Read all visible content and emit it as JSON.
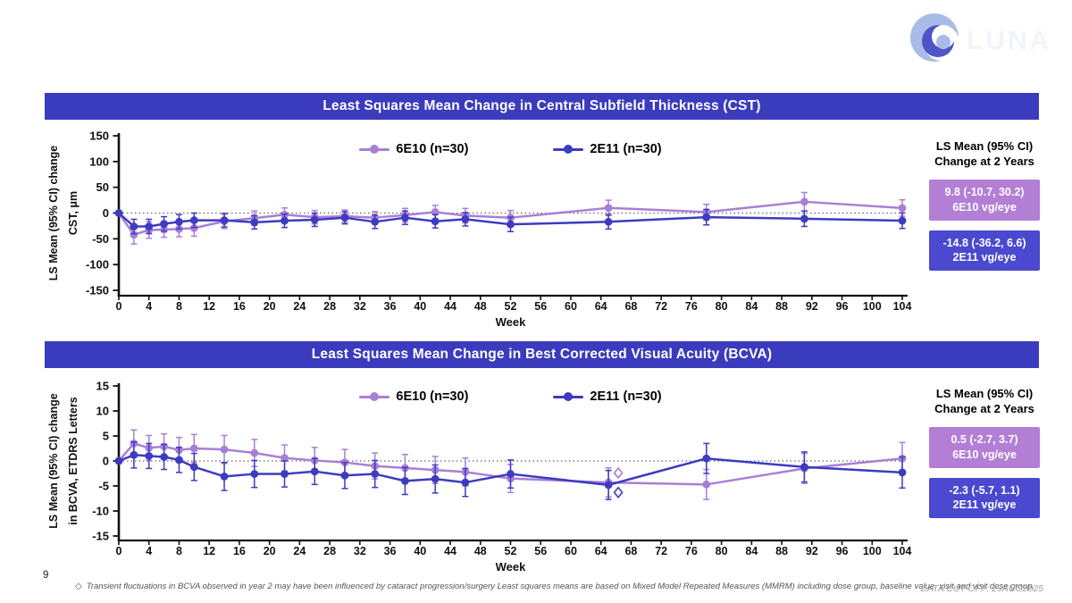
{
  "page": {
    "number": "9",
    "footnote_marker": "◇",
    "footnote": "Transient fluctuations in BCVA observed in year 2 may have been influenced by cataract progression/surgery Least squares means are based on Mixed Model Repeated Measures (MMRM) including dose group, baseline value, visit and visit dose group.",
    "data_cutoff": "DATA CUT-OFF: 29AUG2025",
    "logo_text": "LUNA"
  },
  "colors": {
    "series_6e10": "#a97fd6",
    "series_2e11": "#3d3bbf",
    "title_bar": "#3b3bbe",
    "callout_6e10": "#b27fd5",
    "callout_2e11": "#4a49cf",
    "logo_light": "#a9bce9",
    "logo_dark": "#4d55c7",
    "zero_line": "#666666",
    "axis": "#111111"
  },
  "side_panels": [
    {
      "heading_line1": "LS Mean (95% CI)",
      "heading_line2": "Change at 2 Years",
      "boxes": [
        {
          "value": "9.8 (-10.7, 30.2)",
          "label": "6E10 vg/eye"
        },
        {
          "value": "-14.8 (-36.2, 6.6)",
          "label": "2E11 vg/eye"
        }
      ]
    },
    {
      "heading_line1": "LS Mean (95% CI)",
      "heading_line2": "Change at 2 Years",
      "boxes": [
        {
          "value": "0.5 (-2.7, 3.7)",
          "label": "6E10 vg/eye"
        },
        {
          "value": "-2.3 (-5.7, 1.1)",
          "label": "2E11 vg/eye"
        }
      ]
    }
  ],
  "chart_data": [
    {
      "type": "line",
      "title": "Least Squares Mean Change in Central Subfield Thickness (CST)",
      "xlabel": "Week",
      "ylabel_line1": "LS Mean (95% CI) change",
      "ylabel_line2": "CST, μm",
      "xlim": [
        0,
        104
      ],
      "ylim": [
        -150,
        150
      ],
      "xticks": [
        0,
        4,
        8,
        12,
        16,
        20,
        24,
        28,
        32,
        36,
        40,
        44,
        48,
        52,
        56,
        60,
        64,
        68,
        72,
        76,
        80,
        84,
        88,
        92,
        96,
        100,
        104
      ],
      "yticks": [
        150,
        100,
        50,
        0,
        -50,
        -100,
        -150
      ],
      "zero_line": true,
      "grid": false,
      "legend_position": "top-center",
      "x": [
        0,
        2,
        4,
        6,
        8,
        10,
        14,
        18,
        22,
        26,
        30,
        34,
        38,
        42,
        46,
        52,
        65,
        78,
        91,
        104
      ],
      "series": [
        {
          "key": "6e10",
          "name": "6E10 (n=30)",
          "color": "#a97fd6",
          "values": [
            0,
            -42,
            -33,
            -32,
            -31,
            -29,
            -16,
            -10,
            -3,
            -8,
            -6,
            -9,
            -4,
            2,
            -5,
            -9,
            10,
            2,
            22,
            9.8
          ],
          "ci": [
            0,
            18,
            16,
            15,
            15,
            16,
            14,
            14,
            13,
            13,
            12,
            12,
            13,
            13,
            14,
            14,
            15,
            15,
            18,
            16
          ]
        },
        {
          "key": "2e11",
          "name": "2E11 (n=30)",
          "color": "#3d3bbf",
          "values": [
            0,
            -26,
            -26,
            -21,
            -17,
            -14,
            -14,
            -18,
            -15,
            -13,
            -9,
            -17,
            -9,
            -16,
            -12,
            -22,
            -17,
            -8,
            -11,
            -14.8
          ],
          "ci": [
            0,
            14,
            14,
            14,
            14,
            14,
            13,
            13,
            13,
            13,
            12,
            13,
            13,
            13,
            13,
            14,
            14,
            15,
            15,
            15
          ]
        }
      ],
      "annotations": []
    },
    {
      "type": "line",
      "title": "Least Squares Mean Change in Best Corrected Visual Acuity (BCVA)",
      "xlabel": "Week",
      "ylabel_line1": "LS Mean (95% CI) change",
      "ylabel_line2": "in BCVA, ETDRS Letters",
      "xlim": [
        0,
        104
      ],
      "ylim": [
        -15,
        15
      ],
      "xticks": [
        0,
        4,
        8,
        12,
        16,
        20,
        24,
        28,
        32,
        36,
        40,
        44,
        48,
        52,
        56,
        60,
        64,
        68,
        72,
        76,
        80,
        84,
        88,
        92,
        96,
        100,
        104
      ],
      "yticks": [
        15,
        10,
        5,
        0,
        -5,
        -10,
        -15
      ],
      "zero_line": true,
      "grid": false,
      "legend_position": "top-center",
      "x": [
        0,
        2,
        4,
        6,
        8,
        10,
        14,
        18,
        22,
        26,
        30,
        34,
        38,
        42,
        46,
        52,
        65,
        78,
        91,
        104
      ],
      "series": [
        {
          "key": "6e10",
          "name": "6E10 (n=30)",
          "color": "#a97fd6",
          "values": [
            0,
            3.5,
            2.6,
            2.9,
            2.2,
            2.5,
            2.3,
            1.6,
            0.6,
            0.1,
            -0.3,
            -1.0,
            -1.4,
            -1.8,
            -2.2,
            -3.5,
            -4.3,
            -4.7,
            -1.5,
            0.5
          ],
          "ci": [
            0,
            2.7,
            2.5,
            2.5,
            2.5,
            2.8,
            2.8,
            2.7,
            2.6,
            2.6,
            2.6,
            2.6,
            2.7,
            2.7,
            2.8,
            2.8,
            2.9,
            3.0,
            3.0,
            3.2
          ]
        },
        {
          "key": "2e11",
          "name": "2E11 (n=30)",
          "color": "#3d3bbf",
          "values": [
            0,
            1.2,
            1.0,
            0.8,
            0.2,
            -1.2,
            -3.1,
            -2.6,
            -2.6,
            -2.1,
            -2.9,
            -2.6,
            -4.0,
            -3.6,
            -4.3,
            -2.6,
            -4.8,
            0.5,
            -1.2,
            -2.3
          ],
          "ci": [
            0,
            2.6,
            2.5,
            2.5,
            2.5,
            2.7,
            2.8,
            2.7,
            2.6,
            2.6,
            2.6,
            2.7,
            2.7,
            2.8,
            2.8,
            2.8,
            2.9,
            3.0,
            3.0,
            3.1
          ]
        }
      ],
      "annotations": [
        {
          "x": 66.3,
          "y": -2.4,
          "shape": "diamond",
          "color": "#a97fd6"
        },
        {
          "x": 66.3,
          "y": -6.3,
          "shape": "diamond",
          "color": "#3d3bbf"
        }
      ]
    }
  ]
}
